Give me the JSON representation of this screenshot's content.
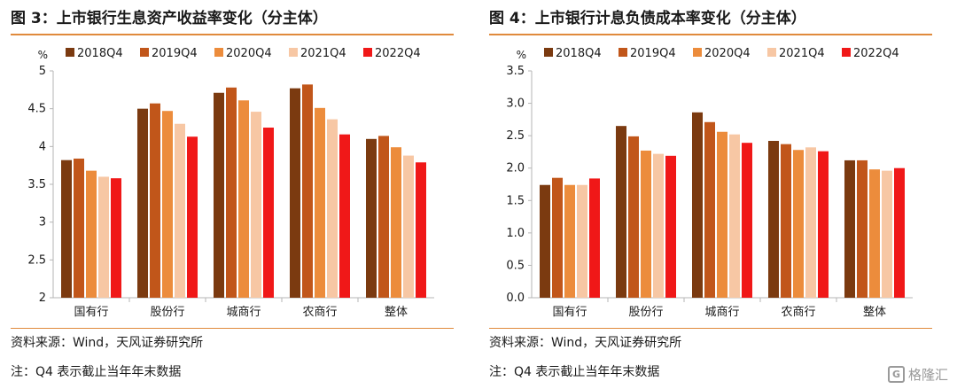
{
  "left": {
    "title": "图 3：上市银行生息资产收益率变化（分主体）",
    "source": "资料来源：Wind，天风证券研究所",
    "note": "注：Q4 表示截止当年年末数据"
  },
  "right": {
    "title": "图 4：上市银行计息负债成本率变化（分主体）",
    "source": "资料来源：Wind，天风证券研究所",
    "note": "注：Q4 表示截止当年年末数据"
  },
  "watermark": {
    "icon": "G",
    "text": "格隆汇"
  },
  "colors": {
    "2018Q4": "#7b3a10",
    "2019Q4": "#c1561a",
    "2020Q4": "#ec8c3c",
    "2021Q4": "#f7c7a4",
    "2022Q4": "#f01818",
    "rule": "#e08a3c"
  },
  "chart_data": [
    {
      "type": "bar",
      "ylabel": "%",
      "ylim": [
        2,
        5
      ],
      "yticks": [
        "2",
        "2.5",
        "3",
        "3.5",
        "4",
        "4.5",
        "5"
      ],
      "legend_position": "top",
      "categories": [
        "国有行",
        "股份行",
        "城商行",
        "农商行",
        "整体"
      ],
      "series": [
        {
          "name": "2018Q4",
          "values": [
            3.82,
            4.5,
            4.71,
            4.77,
            4.1
          ]
        },
        {
          "name": "2019Q4",
          "values": [
            3.84,
            4.57,
            4.78,
            4.82,
            4.14
          ]
        },
        {
          "name": "2020Q4",
          "values": [
            3.68,
            4.47,
            4.61,
            4.51,
            3.99
          ]
        },
        {
          "name": "2021Q4",
          "values": [
            3.6,
            4.3,
            4.46,
            4.36,
            3.88
          ]
        },
        {
          "name": "2022Q4",
          "values": [
            3.58,
            4.13,
            4.25,
            4.16,
            3.79
          ]
        }
      ]
    },
    {
      "type": "bar",
      "ylabel": "%",
      "ylim": [
        0,
        3.5
      ],
      "yticks": [
        "0.0",
        "0.5",
        "1.0",
        "1.5",
        "2.0",
        "2.5",
        "3.0",
        "3.5"
      ],
      "legend_position": "top",
      "categories": [
        "国有行",
        "股份行",
        "城商行",
        "农商行",
        "整体"
      ],
      "series": [
        {
          "name": "2018Q4",
          "values": [
            1.74,
            2.65,
            2.86,
            2.42,
            2.12
          ]
        },
        {
          "name": "2019Q4",
          "values": [
            1.85,
            2.49,
            2.71,
            2.37,
            2.12
          ]
        },
        {
          "name": "2020Q4",
          "values": [
            1.74,
            2.27,
            2.56,
            2.28,
            1.98
          ]
        },
        {
          "name": "2021Q4",
          "values": [
            1.74,
            2.22,
            2.52,
            2.32,
            1.96
          ]
        },
        {
          "name": "2022Q4",
          "values": [
            1.84,
            2.19,
            2.39,
            2.26,
            2.0
          ]
        }
      ]
    }
  ]
}
